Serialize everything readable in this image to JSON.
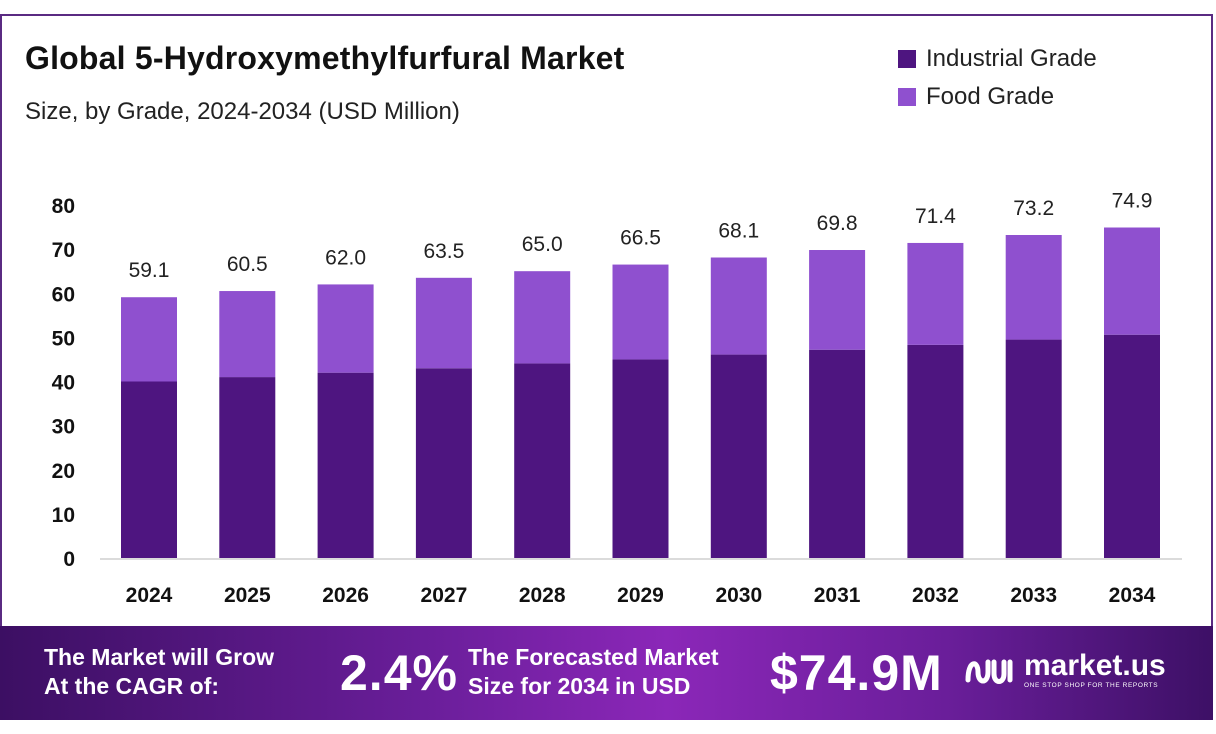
{
  "chart_data": {
    "type": "bar",
    "stacked": true,
    "title": "Global 5-Hydroxymethylfurfural Market",
    "subtitle": "Size, by Grade, 2024-2034 (USD Million)",
    "categories": [
      "2024",
      "2025",
      "2026",
      "2027",
      "2028",
      "2029",
      "2030",
      "2031",
      "2032",
      "2033",
      "2034"
    ],
    "series": [
      {
        "name": "Industrial Grade",
        "color": "#4e1580",
        "values": [
          40.0,
          41.0,
          42.0,
          43.0,
          44.1,
          45.0,
          46.1,
          47.2,
          48.3,
          49.5,
          50.6
        ]
      },
      {
        "name": "Food Grade",
        "color": "#8f50cf",
        "values": [
          19.1,
          19.5,
          20.0,
          20.5,
          20.9,
          21.5,
          22.0,
          22.6,
          23.1,
          23.7,
          24.3
        ]
      }
    ],
    "totals_labels": [
      "59.1",
      "60.5",
      "62.0",
      "63.5",
      "65.0",
      "66.5",
      "68.1",
      "69.8",
      "71.4",
      "73.2",
      "74.9"
    ],
    "totals": [
      59.1,
      60.5,
      62.0,
      63.5,
      65.0,
      66.5,
      68.1,
      69.8,
      71.4,
      73.2,
      74.9
    ],
    "yticks": [
      "0",
      "10",
      "20",
      "30",
      "40",
      "50",
      "60",
      "70",
      "80"
    ],
    "ylim": [
      0,
      80
    ],
    "grid": false,
    "legend_position": "top-right"
  },
  "banner": {
    "cagr_text_line1": "The Market will Grow",
    "cagr_text_line2": "At the CAGR of:",
    "cagr_value": "2.4%",
    "forecast_text_line1": "The Forecasted Market",
    "forecast_text_line2": "Size for 2034 in USD",
    "forecast_value": "$74.9M",
    "logo_name": "market.us",
    "logo_tagline": "ONE STOP SHOP FOR THE REPORTS",
    "logo_icon": "market-us-logo-icon"
  }
}
